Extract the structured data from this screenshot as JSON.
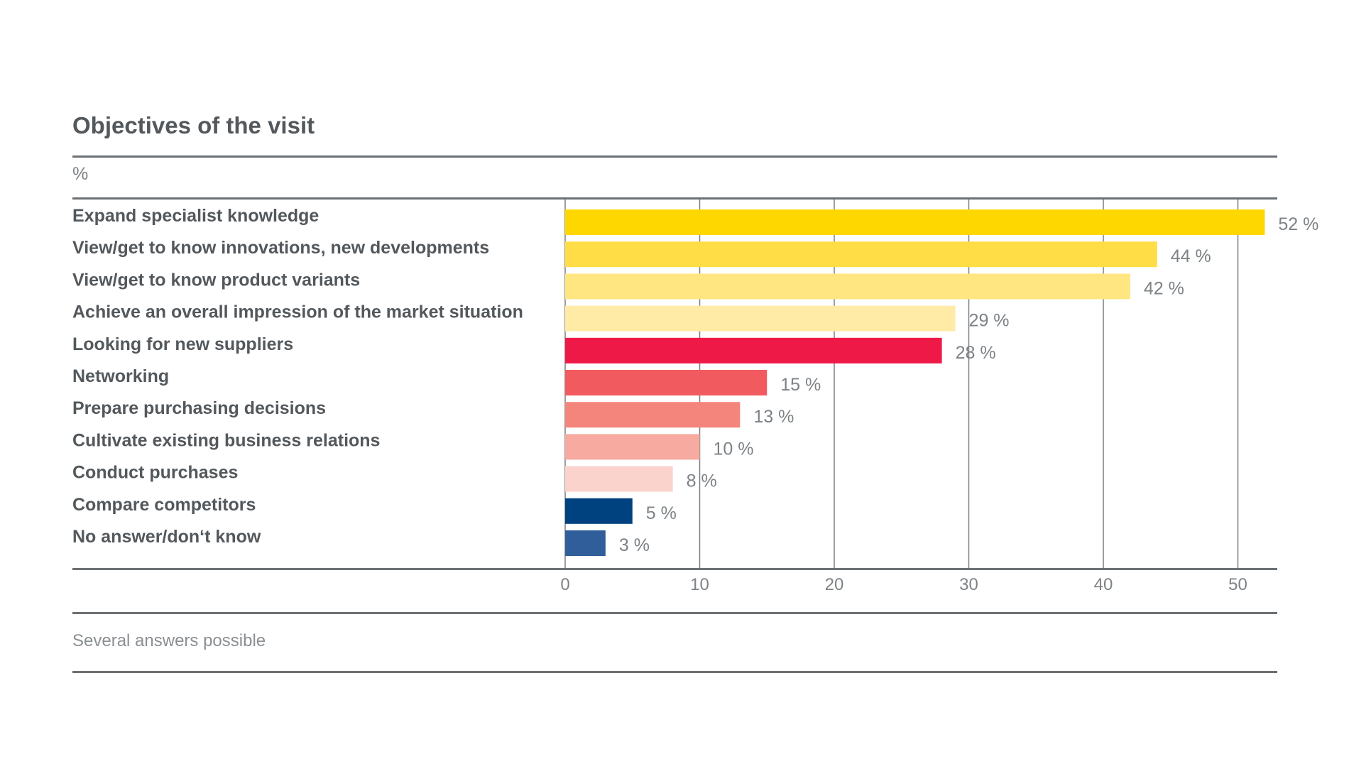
{
  "chart_data": {
    "type": "bar",
    "orientation": "horizontal",
    "title": "Objectives of the visit",
    "unit_label": "%",
    "value_suffix": " %",
    "categories": [
      "Expand specialist knowledge",
      "View/get to know innovations, new developments",
      "View/get to know product variants",
      "Achieve an overall impression of the market situation",
      "Looking for new suppliers",
      "Networking",
      "Prepare purchasing decisions",
      "Cultivate existing business relations",
      "Conduct purchases",
      "Compare competitors",
      "No answer/don‘t know"
    ],
    "values": [
      52,
      44,
      42,
      29,
      28,
      15,
      13,
      10,
      8,
      5,
      3
    ],
    "colors": [
      "#ffd700",
      "#ffdd47",
      "#ffe680",
      "#ffeaa6",
      "#ef1948",
      "#f15a5f",
      "#f4857c",
      "#f7aa9f",
      "#fad3cc",
      "#00427f",
      "#2f5e9a"
    ],
    "xlim": [
      0,
      53
    ],
    "xticks": [
      0,
      10,
      20,
      30,
      40,
      50
    ],
    "grid": true,
    "footnote": "Several answers possible"
  }
}
